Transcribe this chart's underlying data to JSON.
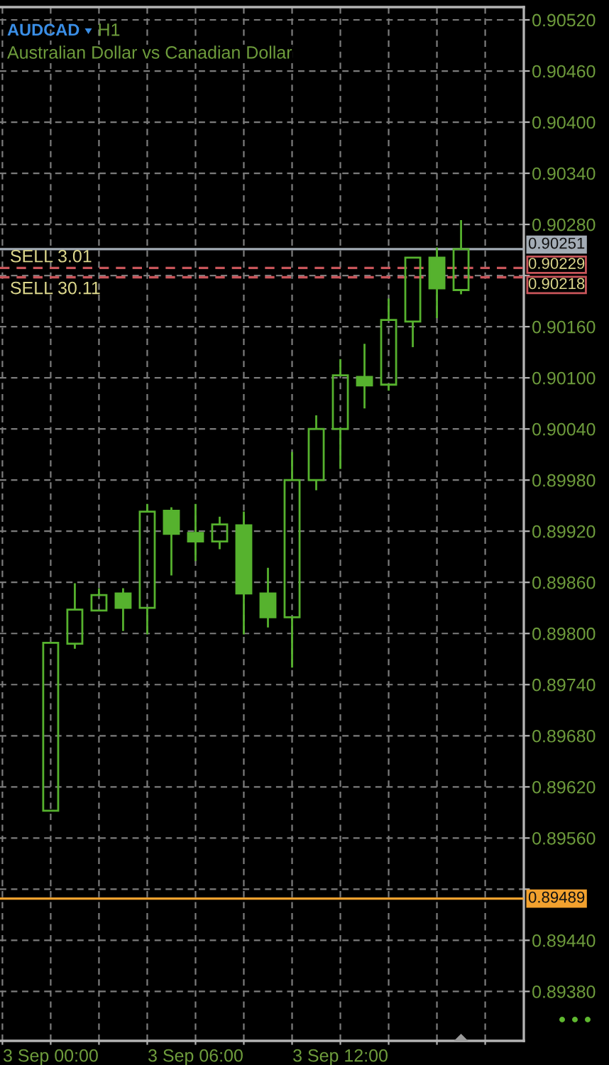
{
  "chart_data": {
    "type": "candlestick",
    "title": "AUDCAD",
    "subtitle": "Australian Dollar vs Canadian Dollar",
    "annotations": [
      "H1",
      {
        "text": "SELL 3.01",
        "y": 0.90229
      },
      {
        "text": "SELL 30.11",
        "y": 0.90218
      }
    ],
    "categories": [
      "3 Sep 00:00",
      null,
      null,
      null,
      null,
      null,
      "3 Sep 06:00",
      null,
      null,
      null,
      null,
      null,
      "3 Sep 12:00",
      null,
      null,
      null,
      null,
      null
    ],
    "ohlc": [
      [
        0.89592,
        0.89789,
        0.89592,
        0.89789
      ],
      [
        0.89788,
        0.89859,
        0.89782,
        0.89828
      ],
      [
        0.89827,
        0.89853,
        0.89827,
        0.89845
      ],
      [
        0.89847,
        0.89853,
        0.89803,
        0.8983
      ],
      [
        0.8983,
        0.89952,
        0.89799,
        0.89943
      ],
      [
        0.89944,
        0.89948,
        0.89868,
        0.89917
      ],
      [
        0.89918,
        0.89952,
        0.89885,
        0.89908
      ],
      [
        0.89908,
        0.89937,
        0.89899,
        0.89928
      ],
      [
        0.89927,
        0.89943,
        0.89799,
        0.89847
      ],
      [
        0.89847,
        0.89877,
        0.89807,
        0.89819
      ],
      [
        0.89819,
        0.90013,
        0.8976,
        0.8998
      ],
      [
        0.8998,
        0.90056,
        0.89968,
        0.9004
      ],
      [
        0.9004,
        0.90122,
        0.89993,
        0.90103
      ],
      [
        0.90101,
        0.9014,
        0.90064,
        0.90091
      ],
      [
        0.90092,
        0.90193,
        0.90085,
        0.90168
      ],
      [
        0.90166,
        0.90241,
        0.90136,
        0.90241
      ],
      [
        0.90241,
        0.90253,
        0.9017,
        0.90205
      ],
      [
        0.90203,
        0.90285,
        0.90198,
        0.90251
      ]
    ],
    "color": "#56b22e",
    "ylim": [
      0.89322,
      0.90535
    ],
    "yticks": [
      {
        "value": 0.8938,
        "label": "0.89380"
      },
      {
        "value": 0.8944,
        "label": "0.89440"
      },
      {
        "value": 0.895,
        "label": null
      },
      {
        "value": 0.8956,
        "label": "0.89560"
      },
      {
        "value": 0.8962,
        "label": "0.89620"
      },
      {
        "value": 0.8968,
        "label": "0.89680"
      },
      {
        "value": 0.8974,
        "label": "0.89740"
      },
      {
        "value": 0.898,
        "label": "0.89800"
      },
      {
        "value": 0.8986,
        "label": "0.89860"
      },
      {
        "value": 0.8992,
        "label": "0.89920"
      },
      {
        "value": 0.8998,
        "label": "0.89980"
      },
      {
        "value": 0.9004,
        "label": "0.90040"
      },
      {
        "value": 0.901,
        "label": "0.90100"
      },
      {
        "value": 0.9016,
        "label": "0.90160"
      },
      {
        "value": 0.9022,
        "label": null
      },
      {
        "value": 0.9028,
        "label": "0.90280"
      },
      {
        "value": 0.9034,
        "label": "0.90340"
      },
      {
        "value": 0.904,
        "label": "0.90400"
      },
      {
        "value": 0.9046,
        "label": "0.90460"
      },
      {
        "value": 0.9052,
        "label": "0.90520"
      }
    ],
    "grid": true,
    "ref_lines": [
      {
        "axis": "y",
        "value": 0.90251,
        "label": "0.90251",
        "color": "#a3acb5",
        "line_style": "solid"
      },
      {
        "axis": "y",
        "value": 0.90229,
        "label": "0.90229",
        "color": "#c8555a",
        "line_style": "dashed"
      },
      {
        "axis": "y",
        "value": 0.90218,
        "label": "0.90218",
        "color": "#c8555a",
        "line_style": "dashed"
      },
      {
        "axis": "y",
        "value": 0.89489,
        "label": "0.89489",
        "color": "#f2a12e",
        "line_style": "solid"
      }
    ]
  }
}
